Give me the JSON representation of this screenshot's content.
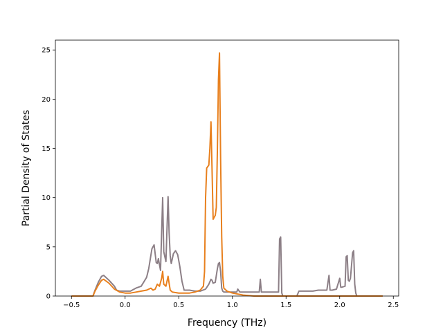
{
  "chart_data": {
    "type": "line",
    "title": "",
    "xlabel": "Frequency (THz)",
    "ylabel": "Partial Density of States",
    "xlim": [
      -0.65,
      2.55
    ],
    "ylim": [
      0,
      26
    ],
    "xticks": [
      -0.5,
      0.0,
      0.5,
      1.0,
      1.5,
      2.0,
      2.5
    ],
    "xtick_labels": [
      "−0.5",
      "0.0",
      "0.5",
      "1.0",
      "1.5",
      "2.0",
      "2.5"
    ],
    "yticks": [
      0,
      5,
      10,
      15,
      20,
      25
    ],
    "ytick_labels": [
      "0",
      "5",
      "10",
      "15",
      "20",
      "25"
    ],
    "grid": false,
    "legend": "none",
    "series": [
      {
        "color": "#8c7f86",
        "x": [
          -0.5,
          -0.3,
          -0.28,
          -0.25,
          -0.22,
          -0.2,
          -0.15,
          -0.1,
          -0.08,
          -0.05,
          0.0,
          0.05,
          0.1,
          0.15,
          0.2,
          0.22,
          0.25,
          0.27,
          0.29,
          0.3,
          0.31,
          0.33,
          0.35,
          0.36,
          0.38,
          0.4,
          0.41,
          0.42,
          0.43,
          0.44,
          0.45,
          0.47,
          0.49,
          0.51,
          0.53,
          0.55,
          0.6,
          0.65,
          0.7,
          0.75,
          0.78,
          0.8,
          0.81,
          0.82,
          0.84,
          0.86,
          0.87,
          0.88,
          0.89,
          0.9,
          0.91,
          0.92,
          0.95,
          1.0,
          1.02,
          1.04,
          1.05,
          1.07,
          1.2,
          1.25,
          1.26,
          1.27,
          1.28,
          1.3,
          1.42,
          1.43,
          1.44,
          1.45,
          1.46,
          1.47,
          1.6,
          1.62,
          1.64,
          1.7,
          1.75,
          1.8,
          1.85,
          1.88,
          1.9,
          1.91,
          1.93,
          1.97,
          2.0,
          2.01,
          2.02,
          2.05,
          2.06,
          2.07,
          2.08,
          2.09,
          2.1,
          2.12,
          2.13,
          2.14,
          2.15,
          2.16,
          2.2,
          2.4
        ],
        "values": [
          0,
          0,
          0.6,
          1.4,
          2.0,
          2.1,
          1.6,
          1.0,
          0.6,
          0.5,
          0.5,
          0.5,
          0.8,
          1.0,
          1.9,
          2.8,
          4.8,
          5.2,
          3.4,
          3.3,
          3.8,
          2.6,
          10.0,
          4.5,
          3.5,
          10.1,
          6.5,
          4.1,
          3.3,
          3.8,
          4.3,
          4.6,
          4.2,
          3.0,
          1.5,
          0.6,
          0.6,
          0.5,
          0.5,
          0.7,
          1.2,
          1.7,
          1.6,
          1.3,
          1.4,
          2.8,
          3.3,
          3.4,
          2.5,
          0.8,
          0.5,
          0.4,
          0.4,
          0.4,
          0.4,
          0.4,
          0.7,
          0.4,
          0.4,
          0.4,
          1.7,
          0.4,
          0.4,
          0.4,
          0.4,
          0.4,
          5.8,
          6.0,
          0.3,
          0,
          0,
          0.5,
          0.5,
          0.5,
          0.5,
          0.6,
          0.6,
          0.6,
          2.1,
          0.6,
          0.6,
          0.7,
          1.8,
          0.9,
          0.9,
          1.0,
          4.0,
          4.1,
          1.6,
          1.5,
          1.8,
          4.4,
          4.6,
          1.2,
          0.3,
          0,
          0,
          0
        ]
      },
      {
        "color": "#e8801e",
        "x": [
          -0.5,
          -0.3,
          -0.28,
          -0.25,
          -0.22,
          -0.2,
          -0.15,
          -0.1,
          -0.05,
          0.0,
          0.05,
          0.1,
          0.15,
          0.2,
          0.24,
          0.26,
          0.28,
          0.3,
          0.32,
          0.34,
          0.35,
          0.36,
          0.38,
          0.4,
          0.41,
          0.42,
          0.44,
          0.5,
          0.55,
          0.6,
          0.65,
          0.7,
          0.73,
          0.74,
          0.75,
          0.76,
          0.78,
          0.79,
          0.8,
          0.81,
          0.82,
          0.84,
          0.85,
          0.86,
          0.87,
          0.88,
          0.89,
          0.9,
          0.91,
          0.92,
          0.95,
          1.0,
          1.1,
          1.2,
          1.3,
          1.45,
          1.6,
          1.8,
          2.0,
          2.15,
          2.2,
          2.4
        ],
        "values": [
          0,
          0,
          0.5,
          1.1,
          1.6,
          1.7,
          1.3,
          0.7,
          0.4,
          0.3,
          0.3,
          0.4,
          0.5,
          0.6,
          0.8,
          0.6,
          0.7,
          1.2,
          1.0,
          1.8,
          2.5,
          1.2,
          1.0,
          2.0,
          1.3,
          0.6,
          0.4,
          0.3,
          0.3,
          0.3,
          0.4,
          0.6,
          1.0,
          2.5,
          10.0,
          13.0,
          13.3,
          15.0,
          17.7,
          13.0,
          7.8,
          8.2,
          9.0,
          15.0,
          22.0,
          24.7,
          14.0,
          6.0,
          2.0,
          0.8,
          0.5,
          0.3,
          0.1,
          0,
          0,
          0,
          0,
          0,
          0,
          0,
          0,
          0
        ]
      }
    ]
  }
}
